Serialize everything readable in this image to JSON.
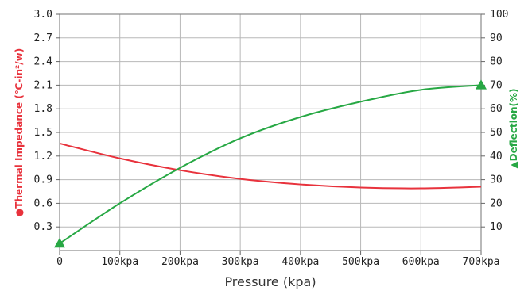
{
  "chart_data": {
    "type": "line",
    "xlabel": "Pressure (kpa)",
    "x_ticks": [
      "0",
      "100kpa",
      "200kpa",
      "300kpa",
      "400kpa",
      "500kpa",
      "600kpa",
      "700kpa"
    ],
    "xlim": [
      0,
      700
    ],
    "y_left": {
      "label": "Thermal Impedance (℃-in²/w)",
      "label_marker": "●",
      "ticks": [
        "3.0",
        "2.7",
        "2.4",
        "2.1",
        "1.8",
        "1.5",
        "1.2",
        "0.9",
        "0.6",
        "0.3"
      ],
      "lim": [
        0,
        3.0
      ],
      "color": "#e8323c"
    },
    "y_right": {
      "label": "Deflection(%)",
      "label_marker": "▲",
      "ticks": [
        "100",
        "90",
        "80",
        "70",
        "60",
        "50",
        "40",
        "30",
        "20",
        "10"
      ],
      "lim": [
        0,
        100
      ],
      "color": "#27a844"
    },
    "grid": true,
    "series": [
      {
        "axis": "left",
        "color": "#e8323c",
        "x": [
          0,
          100,
          200,
          300,
          400,
          500,
          600,
          700
        ],
        "y": [
          1.36,
          1.17,
          1.02,
          0.91,
          0.84,
          0.8,
          0.79,
          0.81
        ]
      },
      {
        "axis": "right",
        "color": "#27a844",
        "marker": "triangle",
        "markers_at": [
          0,
          700
        ],
        "x": [
          0,
          100,
          200,
          300,
          400,
          500,
          600,
          700
        ],
        "y": [
          3,
          20,
          35,
          47.5,
          56.5,
          63,
          68,
          70
        ]
      }
    ]
  }
}
